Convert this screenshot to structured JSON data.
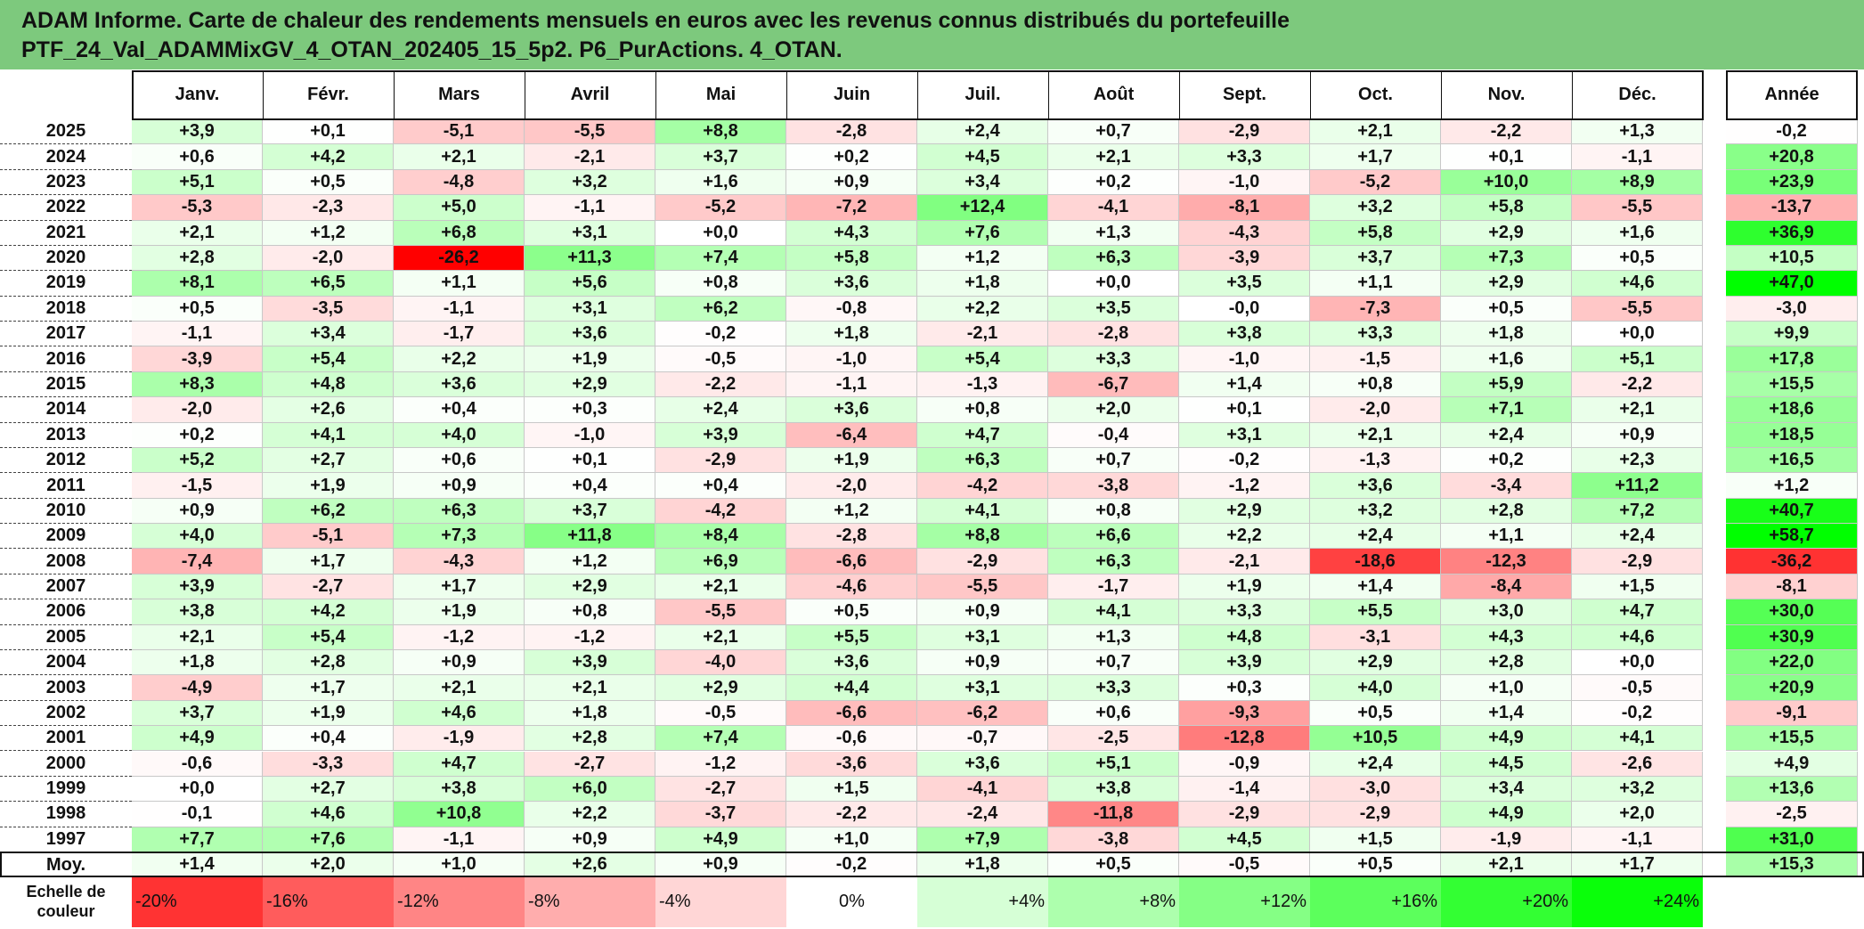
{
  "title": {
    "line1": "ADAM Informe. Carte de chaleur des rendements mensuels en euros avec les revenus connus distribués du portefeuille",
    "line2": "PTF_24_Val_ADAMMixGV_4_OTAN_202405_15_5p2. P6_PurActions. 4_OTAN."
  },
  "chart_data": {
    "type": "heatmap",
    "months": [
      "Janv.",
      "Févr.",
      "Mars",
      "Avril",
      "Mai",
      "Juin",
      "Juil.",
      "Août",
      "Sept.",
      "Oct.",
      "Nov.",
      "Déc."
    ],
    "year_header": "Année",
    "rows": [
      {
        "year": "2025",
        "values": [
          "+3,9",
          "+0,1",
          "-5,1",
          "-5,5",
          "+8,8",
          "-2,8",
          "+2,4",
          "+0,7",
          "-2,9",
          "+2,1",
          "-2,2",
          "+1,3"
        ],
        "annual": "-0,2"
      },
      {
        "year": "2024",
        "values": [
          "+0,6",
          "+4,2",
          "+2,1",
          "-2,1",
          "+3,7",
          "+0,2",
          "+4,5",
          "+2,1",
          "+3,3",
          "+1,7",
          "+0,1",
          "-1,1"
        ],
        "annual": "+20,8"
      },
      {
        "year": "2023",
        "values": [
          "+5,1",
          "+0,5",
          "-4,8",
          "+3,2",
          "+1,6",
          "+0,9",
          "+3,4",
          "+0,2",
          "-1,0",
          "-5,2",
          "+10,0",
          "+8,9"
        ],
        "annual": "+23,9"
      },
      {
        "year": "2022",
        "values": [
          "-5,3",
          "-2,3",
          "+5,0",
          "-1,1",
          "-5,2",
          "-7,2",
          "+12,4",
          "-4,1",
          "-8,1",
          "+3,2",
          "+5,8",
          "-5,5"
        ],
        "annual": "-13,7"
      },
      {
        "year": "2021",
        "values": [
          "+2,1",
          "+1,2",
          "+6,8",
          "+3,1",
          "+0,0",
          "+4,3",
          "+7,6",
          "+1,3",
          "-4,3",
          "+5,8",
          "+2,9",
          "+1,6"
        ],
        "annual": "+36,9"
      },
      {
        "year": "2020",
        "values": [
          "+2,8",
          "-2,0",
          "-26,2",
          "+11,3",
          "+7,4",
          "+5,8",
          "+1,2",
          "+6,3",
          "-3,9",
          "+3,7",
          "+7,3",
          "+0,5"
        ],
        "annual": "+10,5"
      },
      {
        "year": "2019",
        "values": [
          "+8,1",
          "+6,5",
          "+1,1",
          "+5,6",
          "+0,8",
          "+3,6",
          "+1,8",
          "+0,0",
          "+3,5",
          "+1,1",
          "+2,9",
          "+4,6"
        ],
        "annual": "+47,0"
      },
      {
        "year": "2018",
        "values": [
          "+0,5",
          "-3,5",
          "-1,1",
          "+3,1",
          "+6,2",
          "-0,8",
          "+2,2",
          "+3,5",
          "-0,0",
          "-7,3",
          "+0,5",
          "-5,5"
        ],
        "annual": "-3,0"
      },
      {
        "year": "2017",
        "values": [
          "-1,1",
          "+3,4",
          "-1,7",
          "+3,6",
          "-0,2",
          "+1,8",
          "-2,1",
          "-2,8",
          "+3,8",
          "+3,3",
          "+1,8",
          "+0,0"
        ],
        "annual": "+9,9"
      },
      {
        "year": "2016",
        "values": [
          "-3,9",
          "+5,4",
          "+2,2",
          "+1,9",
          "-0,5",
          "-1,0",
          "+5,4",
          "+3,3",
          "-1,0",
          "-1,5",
          "+1,6",
          "+5,1"
        ],
        "annual": "+17,8"
      },
      {
        "year": "2015",
        "values": [
          "+8,3",
          "+4,8",
          "+3,6",
          "+2,9",
          "-2,2",
          "-1,1",
          "-1,3",
          "-6,7",
          "+1,4",
          "+0,8",
          "+5,9",
          "-2,2"
        ],
        "annual": "+15,5"
      },
      {
        "year": "2014",
        "values": [
          "-2,0",
          "+2,6",
          "+0,4",
          "+0,3",
          "+2,4",
          "+3,6",
          "+0,8",
          "+2,0",
          "+0,1",
          "-2,0",
          "+7,1",
          "+2,1"
        ],
        "annual": "+18,6"
      },
      {
        "year": "2013",
        "values": [
          "+0,2",
          "+4,1",
          "+4,0",
          "-1,0",
          "+3,9",
          "-6,4",
          "+4,7",
          "-0,4",
          "+3,1",
          "+2,1",
          "+2,4",
          "+0,9"
        ],
        "annual": "+18,5"
      },
      {
        "year": "2012",
        "values": [
          "+5,2",
          "+2,7",
          "+0,6",
          "+0,1",
          "-2,9",
          "+1,9",
          "+6,3",
          "+0,7",
          "-0,2",
          "-1,3",
          "+0,2",
          "+2,3"
        ],
        "annual": "+16,5"
      },
      {
        "year": "2011",
        "values": [
          "-1,5",
          "+1,9",
          "+0,9",
          "+0,4",
          "+0,4",
          "-2,0",
          "-4,2",
          "-3,8",
          "-1,2",
          "+3,6",
          "-3,4",
          "+11,2"
        ],
        "annual": "+1,2"
      },
      {
        "year": "2010",
        "values": [
          "+0,9",
          "+6,2",
          "+6,3",
          "+3,7",
          "-4,2",
          "+1,2",
          "+4,1",
          "+0,8",
          "+2,9",
          "+3,2",
          "+2,8",
          "+7,2"
        ],
        "annual": "+40,7"
      },
      {
        "year": "2009",
        "values": [
          "+4,0",
          "-5,1",
          "+7,3",
          "+11,8",
          "+8,4",
          "-2,8",
          "+8,8",
          "+6,6",
          "+2,2",
          "+2,4",
          "+1,1",
          "+2,4"
        ],
        "annual": "+58,7"
      },
      {
        "year": "2008",
        "values": [
          "-7,4",
          "+1,7",
          "-4,3",
          "+1,2",
          "+6,9",
          "-6,6",
          "-2,9",
          "+6,3",
          "-2,1",
          "-18,6",
          "-12,3",
          "-2,9"
        ],
        "annual": "-36,2"
      },
      {
        "year": "2007",
        "values": [
          "+3,9",
          "-2,7",
          "+1,7",
          "+2,9",
          "+2,1",
          "-4,6",
          "-5,5",
          "-1,7",
          "+1,9",
          "+1,4",
          "-8,4",
          "+1,5"
        ],
        "annual": "-8,1"
      },
      {
        "year": "2006",
        "values": [
          "+3,8",
          "+4,2",
          "+1,9",
          "+0,8",
          "-5,5",
          "+0,5",
          "+0,9",
          "+4,1",
          "+3,3",
          "+5,5",
          "+3,0",
          "+4,7"
        ],
        "annual": "+30,0"
      },
      {
        "year": "2005",
        "values": [
          "+2,1",
          "+5,4",
          "-1,2",
          "-1,2",
          "+2,1",
          "+5,5",
          "+3,1",
          "+1,3",
          "+4,8",
          "-3,1",
          "+4,3",
          "+4,6"
        ],
        "annual": "+30,9"
      },
      {
        "year": "2004",
        "values": [
          "+1,8",
          "+2,8",
          "+0,9",
          "+3,9",
          "-4,0",
          "+3,6",
          "+0,9",
          "+0,7",
          "+3,9",
          "+2,9",
          "+2,8",
          "+0,0"
        ],
        "annual": "+22,0"
      },
      {
        "year": "2003",
        "values": [
          "-4,9",
          "+1,7",
          "+2,1",
          "+2,1",
          "+2,9",
          "+4,4",
          "+3,1",
          "+3,3",
          "+0,3",
          "+4,0",
          "+1,0",
          "-0,5"
        ],
        "annual": "+20,9"
      },
      {
        "year": "2002",
        "values": [
          "+3,7",
          "+1,9",
          "+4,6",
          "+1,8",
          "-0,5",
          "-6,6",
          "-6,2",
          "+0,6",
          "-9,3",
          "+0,5",
          "+1,4",
          "-0,2"
        ],
        "annual": "-9,1"
      },
      {
        "year": "2001",
        "values": [
          "+4,9",
          "+0,4",
          "-1,9",
          "+2,8",
          "+7,4",
          "-0,6",
          "-0,7",
          "-2,5",
          "-12,8",
          "+10,5",
          "+4,9",
          "+4,1"
        ],
        "annual": "+15,5"
      },
      {
        "year": "2000",
        "values": [
          "-0,6",
          "-3,3",
          "+4,7",
          "-2,7",
          "-1,2",
          "-3,6",
          "+3,6",
          "+5,1",
          "-0,9",
          "+2,4",
          "+4,5",
          "-2,6"
        ],
        "annual": "+4,9"
      },
      {
        "year": "1999",
        "values": [
          "+0,0",
          "+2,7",
          "+3,8",
          "+6,0",
          "-2,7",
          "+1,5",
          "-4,1",
          "+3,8",
          "-1,4",
          "-3,0",
          "+3,4",
          "+3,2"
        ],
        "annual": "+13,6"
      },
      {
        "year": "1998",
        "values": [
          "-0,1",
          "+4,6",
          "+10,8",
          "+2,2",
          "-3,7",
          "-2,2",
          "-2,4",
          "-11,8",
          "-2,9",
          "-2,9",
          "+4,9",
          "+2,0"
        ],
        "annual": "-2,5"
      },
      {
        "year": "1997",
        "values": [
          "+7,7",
          "+7,6",
          "-1,1",
          "+0,9",
          "+4,9",
          "+1,0",
          "+7,9",
          "-3,8",
          "+4,5",
          "+1,5",
          "-1,9",
          "-1,1"
        ],
        "annual": "+31,0"
      }
    ],
    "average": {
      "label": "Moy.",
      "values": [
        "+1,4",
        "+2,0",
        "+1,0",
        "+2,6",
        "+0,9",
        "-0,2",
        "+1,8",
        "+0,5",
        "-0,5",
        "+0,5",
        "+2,1",
        "+1,7"
      ],
      "annual": "+15,3"
    },
    "scale": {
      "label": "Echelle de couleur",
      "steps": [
        {
          "text": "-20%",
          "value": -20
        },
        {
          "text": "-16%",
          "value": -16
        },
        {
          "text": "-12%",
          "value": -12
        },
        {
          "text": "-8%",
          "value": -8
        },
        {
          "text": "-4%",
          "value": -4
        },
        {
          "text": "0%",
          "value": 0
        },
        {
          "text": "+4%",
          "value": 4
        },
        {
          "text": "+8%",
          "value": 8
        },
        {
          "text": "+12%",
          "value": 12
        },
        {
          "text": "+16%",
          "value": 16
        },
        {
          "text": "+20%",
          "value": 20
        },
        {
          "text": "+24%",
          "value": 24
        }
      ]
    }
  }
}
